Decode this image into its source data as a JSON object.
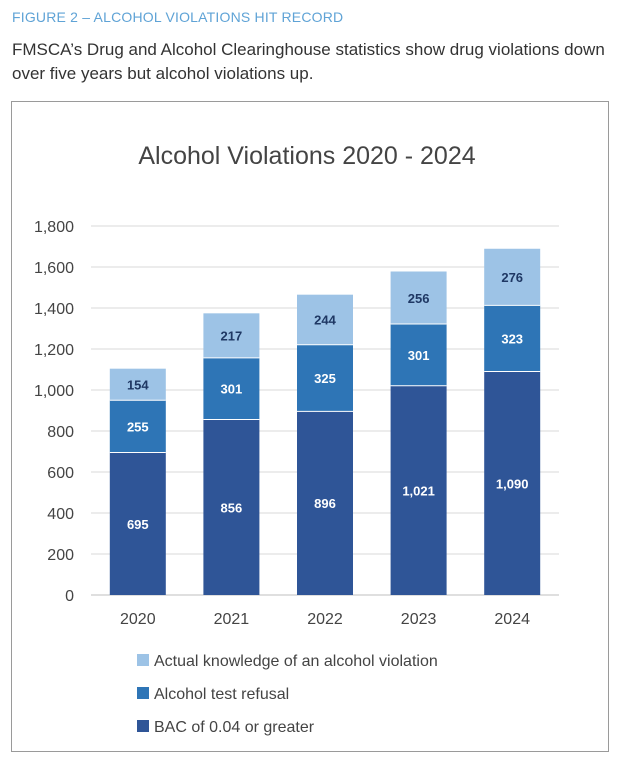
{
  "figure_label": "FIGURE 2 – ALCOHOL VIOLATIONS HIT RECORD",
  "caption": "FMSCA’s Drug and Alcohol Clearinghouse statistics show drug violations down over five years but alcohol violations up.",
  "chart_data": {
    "type": "bar",
    "stacked": true,
    "title": "Alcohol Violations 2020 - 2024",
    "categories": [
      "2020",
      "2021",
      "2022",
      "2023",
      "2024"
    ],
    "ylim": [
      0,
      1800
    ],
    "y_ticks": [
      0,
      200,
      400,
      600,
      800,
      1000,
      1200,
      1400,
      1600,
      1800
    ],
    "y_tick_labels": [
      "0",
      "200",
      "400",
      "600",
      "800",
      "1,000",
      "1,200",
      "1,400",
      "1,600",
      "1,800"
    ],
    "grid": true,
    "legend_position": "bottom",
    "series": [
      {
        "name": "BAC of 0.04 or greater",
        "values": [
          695,
          856,
          896,
          1021,
          1090
        ],
        "labels": [
          "695",
          "856",
          "896",
          "1,021",
          "1,090"
        ],
        "color": "#2f5597",
        "label_color": "#ffffff"
      },
      {
        "name": "Alcohol test refusal",
        "values": [
          255,
          301,
          325,
          301,
          323
        ],
        "labels": [
          "255",
          "301",
          "325",
          "301",
          "323"
        ],
        "color": "#2e75b6",
        "label_color": "#ffffff"
      },
      {
        "name": "Actual knowledge of an alcohol violation",
        "values": [
          154,
          217,
          244,
          256,
          276
        ],
        "labels": [
          "154",
          "217",
          "244",
          "256",
          "276"
        ],
        "color": "#9dc3e6",
        "label_color": "#1f3864"
      }
    ]
  }
}
